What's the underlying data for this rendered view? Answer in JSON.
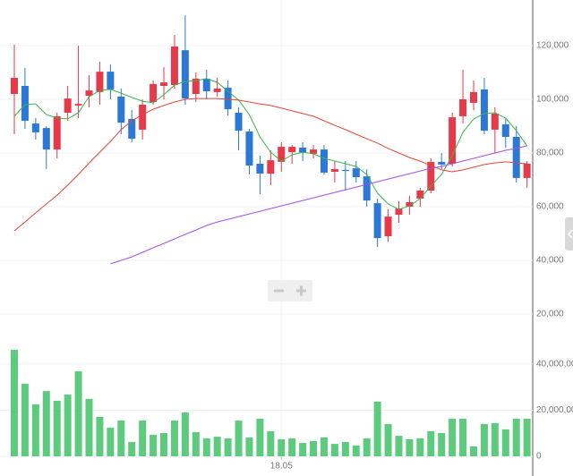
{
  "chart_data": [
    {
      "type": "candlestick",
      "categories": [
        null,
        null,
        null,
        null,
        null,
        null,
        null,
        null,
        null,
        null,
        null,
        null,
        null,
        null,
        null,
        null,
        null,
        null,
        null,
        null,
        null,
        null,
        null,
        null,
        null,
        "18.05",
        null,
        null,
        null,
        null,
        null,
        null,
        null,
        null,
        null,
        null,
        null,
        null,
        null,
        null,
        null,
        null,
        null,
        null,
        null,
        null,
        null,
        null,
        null
      ],
      "open": [
        102000,
        105000,
        91000,
        89300,
        81300,
        95000,
        97700,
        101300,
        102700,
        110300,
        101000,
        92700,
        88700,
        99000,
        105000,
        105300,
        118300,
        102000,
        107700,
        102700,
        104300,
        95000,
        88000,
        76000,
        72300,
        76700,
        80300,
        82000,
        79700,
        81300,
        73000,
        73700,
        74300,
        71300,
        61300,
        49000,
        57000,
        60000,
        63000,
        66000,
        76700,
        76000,
        93700,
        98700,
        103700,
        88700,
        90700,
        86000,
        70700
      ],
      "high": [
        120300,
        111700,
        93000,
        90000,
        95000,
        105000,
        120000,
        109000,
        114000,
        113000,
        104000,
        96000,
        100000,
        107000,
        112000,
        124000,
        131300,
        110000,
        111000,
        108000,
        107000,
        97000,
        89000,
        79000,
        81000,
        84000,
        83000,
        84000,
        83000,
        83000,
        77000,
        77000,
        77000,
        74000,
        63000,
        59000,
        62000,
        64000,
        67000,
        78000,
        80000,
        95000,
        111000,
        107000,
        108000,
        97000,
        93000,
        90000,
        77000
      ],
      "low": [
        87000,
        89000,
        85000,
        74000,
        78000,
        92000,
        93000,
        97000,
        98000,
        100000,
        87000,
        84000,
        85000,
        98000,
        100000,
        104000,
        98000,
        99000,
        100000,
        101000,
        94000,
        81000,
        72000,
        64700,
        68000,
        73000,
        76000,
        77000,
        78000,
        72000,
        69000,
        66000,
        69000,
        60000,
        45000,
        47000,
        54000,
        57000,
        60000,
        65000,
        74000,
        75000,
        91000,
        96000,
        87000,
        80000,
        82000,
        69000,
        67000
      ],
      "close": [
        108000,
        92000,
        87700,
        81300,
        93700,
        100300,
        98300,
        103300,
        110300,
        103700,
        91300,
        85300,
        98000,
        105700,
        106300,
        119700,
        100300,
        107700,
        103000,
        104000,
        96300,
        88300,
        75300,
        72300,
        77300,
        82300,
        82300,
        80000,
        81300,
        72700,
        74000,
        73300,
        71000,
        62300,
        48300,
        56300,
        59300,
        61700,
        66000,
        76700,
        75700,
        93300,
        100000,
        102700,
        88300,
        94700,
        86000,
        70700,
        76000
      ],
      "up_color": "#e8394a",
      "down_color": "#2b78d6",
      "series": [
        {
          "color": "#3cb44b",
          "values": [
            93700,
            98000,
            98300,
            94300,
            93000,
            92700,
            95000,
            101000,
            103300,
            103700,
            102300,
            100700,
            99300,
            98700,
            101700,
            105300,
            106700,
            107000,
            107700,
            106300,
            103000,
            99700,
            94300,
            86000,
            80300,
            77000,
            79300,
            80300,
            79700,
            78000,
            77000,
            76000,
            75000,
            72000,
            65000,
            61000,
            59000,
            60300,
            63000,
            67700,
            72000,
            79000,
            87700,
            92700,
            94700,
            95000,
            93000,
            88300,
            82700
          ]
        },
        {
          "color": "#e0463c",
          "values": [
            51000,
            54300,
            57700,
            61000,
            64300,
            68000,
            72000,
            76300,
            80300,
            84300,
            88700,
            92000,
            94300,
            96300,
            97700,
            99000,
            100000,
            100300,
            100300,
            100300,
            100000,
            99700,
            99000,
            98300,
            97700,
            96700,
            95700,
            94700,
            93700,
            92000,
            90300,
            88700,
            87000,
            85300,
            83700,
            81700,
            80000,
            78300,
            77000,
            75300,
            73700,
            73000,
            73700,
            74700,
            75700,
            76300,
            76700,
            76300,
            76000
          ]
        },
        {
          "color": "#a64ee6",
          "values": [
            null,
            null,
            null,
            null,
            null,
            null,
            null,
            null,
            null,
            38700,
            40000,
            41300,
            43000,
            44700,
            46300,
            48000,
            49700,
            51300,
            53000,
            54300,
            55300,
            56300,
            57300,
            58300,
            59300,
            60300,
            61300,
            62300,
            63300,
            64300,
            65300,
            66300,
            67300,
            68300,
            69300,
            70300,
            71300,
            72300,
            73300,
            74300,
            75000,
            76000,
            77000,
            78000,
            79000,
            80000,
            81000,
            81700,
            82700
          ]
        }
      ],
      "ylim": [
        20000,
        137000
      ],
      "yticks": [
        {
          "value": 20000,
          "label": "20,000"
        },
        {
          "value": 40000,
          "label": "40,000"
        },
        {
          "value": 60000,
          "label": "60,000"
        },
        {
          "value": 80000,
          "label": "80,000"
        },
        {
          "value": 100000,
          "label": "100,000"
        },
        {
          "value": 120000,
          "label": "120,000"
        }
      ],
      "grid": true
    },
    {
      "type": "bar",
      "values": [
        46200000,
        31500000,
        22500000,
        28300000,
        24100000,
        26800000,
        36900000,
        24900000,
        17100000,
        12400000,
        15500000,
        6200000,
        15500000,
        9300000,
        10100000,
        15500000,
        19000000,
        10500000,
        7800000,
        8500000,
        7800000,
        15500000,
        8200000,
        16300000,
        10900000,
        7400000,
        7800000,
        5800000,
        6600000,
        8200000,
        5400000,
        6200000,
        4700000,
        7800000,
        23700000,
        14000000,
        8900000,
        7400000,
        7800000,
        10900000,
        10100000,
        16300000,
        16300000,
        4300000,
        14000000,
        14400000,
        11700000,
        16300000,
        16300000
      ],
      "color": "#5ccb7d",
      "ylim": [
        0,
        61700000
      ],
      "yticks": [
        0,
        {
          "value": 20000000,
          "label": "20,000,000"
        },
        {
          "value": 40000000,
          "label": "40,000,000"
        }
      ],
      "grid": true
    }
  ]
}
